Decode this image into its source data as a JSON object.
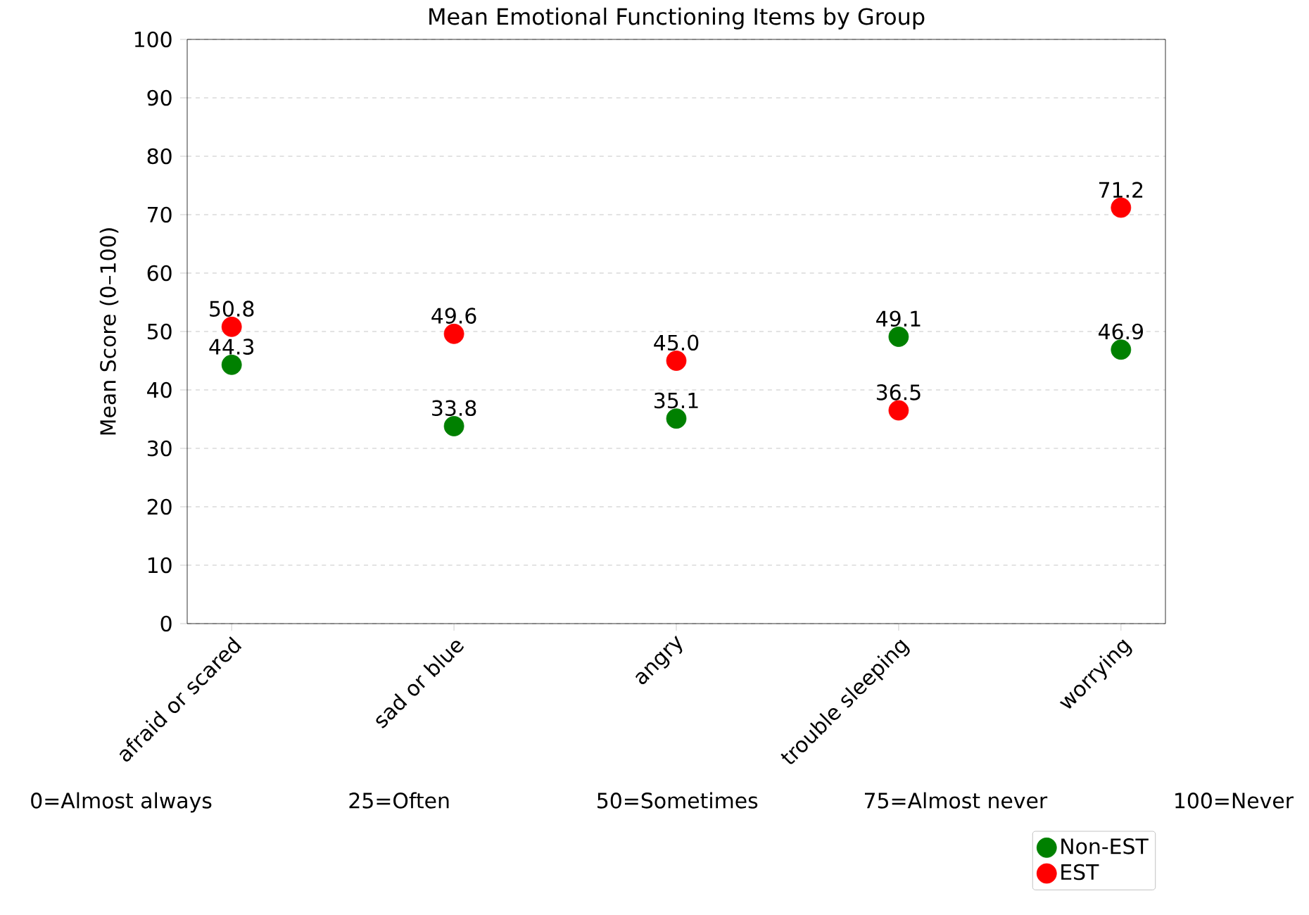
{
  "chart_data": {
    "type": "scatter",
    "title": "Mean Emotional Functioning Items by Group",
    "ylabel": "Mean Score (0–100)",
    "categories": [
      "afraid or scared",
      "sad or blue",
      "angry",
      "trouble sleeping",
      "worrying"
    ],
    "series": [
      {
        "name": "Non-EST",
        "color": "#008000",
        "values": [
          44.3,
          33.8,
          35.1,
          49.1,
          46.9
        ],
        "value_labels": [
          "44.3",
          "33.8",
          "35.1",
          "49.1",
          "46.9"
        ]
      },
      {
        "name": "EST",
        "color": "#ff0000",
        "values": [
          50.8,
          49.6,
          45.0,
          36.5,
          71.2
        ],
        "value_labels": [
          "50.8",
          "49.6",
          "45.0",
          "36.5",
          "71.2"
        ]
      }
    ],
    "ylim": [
      0,
      100
    ],
    "yticks": [
      0,
      10,
      20,
      30,
      40,
      50,
      60,
      70,
      80,
      90,
      100
    ],
    "grid": "y",
    "legend": "bottom right",
    "marker": "circle",
    "annotations": [
      "0=Almost always",
      "25=Often",
      "50=Sometimes",
      "75=Almost never",
      "100=Never"
    ]
  }
}
